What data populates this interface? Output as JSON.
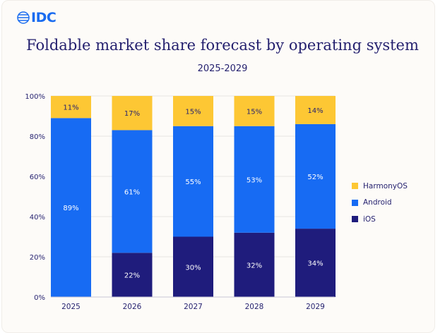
{
  "logo": {
    "text": "IDC"
  },
  "colors": {
    "iOS": "#1f1c7c",
    "Android": "#176bf3",
    "HarmonyOS": "#fdc734",
    "text": "#231f6e",
    "grid": "#e6e4e2"
  },
  "chart_data": {
    "type": "bar",
    "stacked": true,
    "title": "Foldable market share forecast by operating system",
    "subtitle": "2025-2029",
    "xlabel": "",
    "ylabel": "",
    "ylim": [
      0,
      100
    ],
    "yticks": [
      "0%",
      "20%",
      "40%",
      "60%",
      "80%",
      "100%"
    ],
    "categories": [
      "2025",
      "2026",
      "2027",
      "2028",
      "2029"
    ],
    "series": [
      {
        "name": "iOS",
        "values": [
          0,
          22,
          30,
          32,
          34
        ]
      },
      {
        "name": "Android",
        "values": [
          89,
          61,
          55,
          53,
          52
        ]
      },
      {
        "name": "HarmonyOS",
        "values": [
          11,
          17,
          15,
          15,
          14
        ]
      }
    ],
    "legend": {
      "position": "right",
      "order": [
        "HarmonyOS",
        "Android",
        "iOS"
      ]
    },
    "grid": true
  }
}
